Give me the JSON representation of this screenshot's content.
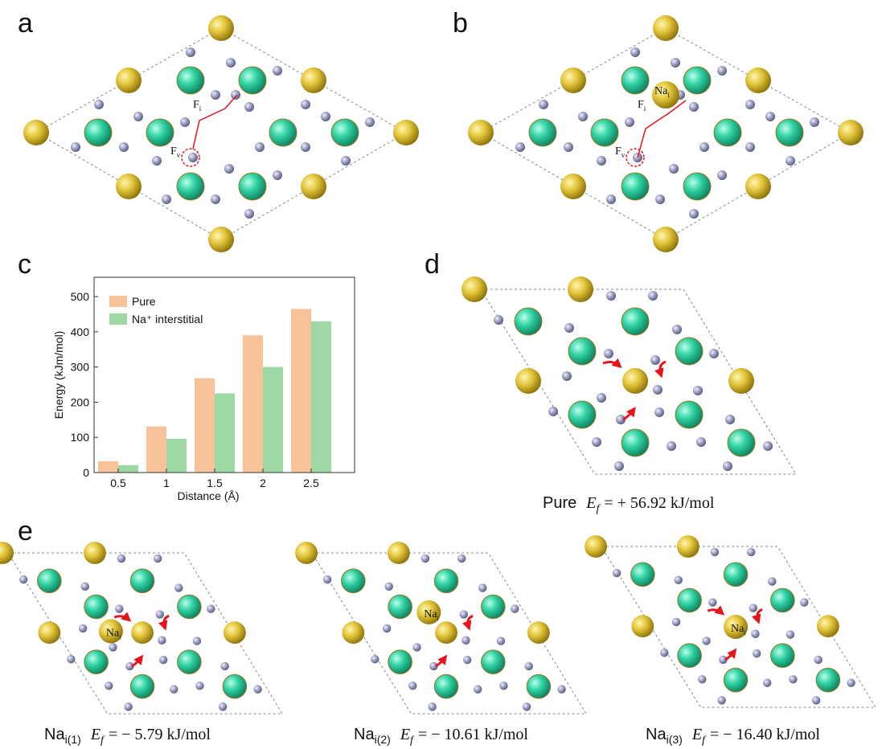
{
  "panel_labels": [
    "a",
    "b",
    "c",
    "d",
    "e"
  ],
  "structure_labels": {
    "fi": {
      "text": "F",
      "sub": "i"
    },
    "fv": {
      "text": "F",
      "sub": "v"
    },
    "nai": {
      "text": "Na",
      "sub": "i"
    }
  },
  "chart_data": {
    "type": "bar",
    "x_label": "Distance (Å)",
    "y_label": "Energy (kJm/mol)",
    "categories": [
      "0.5",
      "1",
      "1.5",
      "2",
      "2.5"
    ],
    "series": [
      {
        "name": "Pure",
        "color": "#f9c39a",
        "values": [
          32,
          131,
          268,
          390,
          465
        ]
      },
      {
        "name": "Na⁺ interstitial",
        "color": "#9ed8a4",
        "values": [
          21,
          96,
          225,
          300,
          430
        ]
      }
    ],
    "ylim": [
      0,
      555
    ],
    "yticks": [
      0,
      100,
      200,
      300,
      400,
      500
    ],
    "legend": "upper-left",
    "grid": false
  },
  "formation_energy": {
    "symbol": "E",
    "subscript": "f",
    "cases": [
      {
        "name": "Pure",
        "value": "= + 56.92 kJ/mol"
      },
      {
        "name": "Na",
        "name_sub": "i",
        "index": "(1)",
        "value": "= − 5.79 kJ/mol"
      },
      {
        "name": "Na",
        "name_sub": "i",
        "index": "(2)",
        "value": "= − 10.61 kJ/mol"
      },
      {
        "name": "Na",
        "name_sub": "i",
        "index": "(3)",
        "value": "= − 16.40 kJ/mol"
      }
    ]
  }
}
